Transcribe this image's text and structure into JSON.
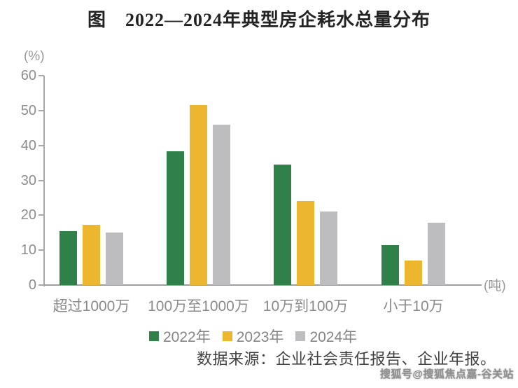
{
  "figure": {
    "watermark": "搜狐号@搜狐焦点嘉-谷关站",
    "source_note": "数据来源：企业社会责任报告、企业年报。"
  },
  "chart_data": {
    "type": "bar",
    "title": "图　2022—2024年典型房企耗水总量分布",
    "categories": [
      "超过1000万",
      "100万至1000万",
      "10万到100万",
      "小于10万"
    ],
    "series": [
      {
        "name": "2022年",
        "color": "#2F8149",
        "values": [
          15.5,
          38.3,
          34.5,
          11.5
        ]
      },
      {
        "name": "2023年",
        "color": "#EDB62F",
        "values": [
          17.2,
          51.5,
          24.1,
          7.0
        ]
      },
      {
        "name": "2024年",
        "color": "#BDBDBF",
        "values": [
          15.0,
          45.9,
          21.0,
          17.8
        ]
      }
    ],
    "xlabel": "(吨)",
    "ylabel": "(%)",
    "ylim": [
      0,
      60
    ],
    "y_ticks": [
      0,
      10,
      20,
      30,
      40,
      50,
      60
    ],
    "grid": false,
    "legend_position": "bottom"
  }
}
